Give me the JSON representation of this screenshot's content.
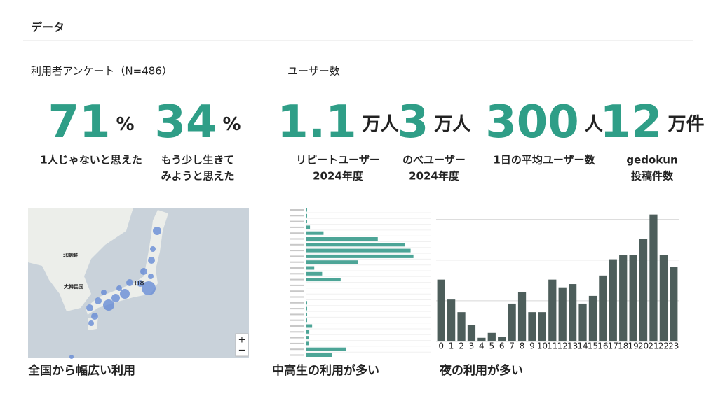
{
  "header": {
    "title": "データ"
  },
  "survey": {
    "label": "利用者アンケート（N=486）",
    "stats": [
      {
        "value": 71,
        "unit": "%",
        "caption": [
          "1人じゃないと思えた"
        ]
      },
      {
        "value": 34,
        "unit": "%",
        "caption": [
          "もう少し生きて",
          "みようと思えた"
        ]
      }
    ]
  },
  "users": {
    "label": "ユーザー数",
    "stats": [
      {
        "value": 1.1,
        "unit": "万人",
        "caption": [
          "リピートユーザー",
          "2024年度"
        ]
      },
      {
        "value": 3,
        "unit": "万人",
        "caption": [
          "のべユーザー",
          "2024年度"
        ]
      },
      {
        "value": 300,
        "unit": "人",
        "caption": [
          "1日の平均ユーザー数"
        ]
      },
      {
        "value": 12,
        "unit": "万件",
        "caption": [
          "gedokun",
          "投稿件数"
        ]
      }
    ]
  },
  "map": {
    "labels": [
      "北朝鮮",
      "大韓民国",
      "日本"
    ],
    "zoom_in": "+",
    "zoom_out": "−",
    "caption": "全国から幅広い利用"
  },
  "chart_data": [
    {
      "type": "hbar",
      "caption": "中高生の利用が多い",
      "color": "#4da597",
      "values": [
        1,
        1,
        1,
        5,
        24,
        100,
        138,
        146,
        150,
        72,
        11,
        22,
        48,
        0,
        0,
        0,
        1,
        1,
        1,
        1,
        8,
        4,
        3,
        3,
        56,
        36
      ],
      "xlim": [
        0,
        170
      ]
    },
    {
      "type": "bar",
      "caption": "夜の利用が多い",
      "color": "#4d5e5b",
      "categories": [
        "0",
        "1",
        "2",
        "3",
        "4",
        "5",
        "6",
        "7",
        "8",
        "9",
        "10",
        "11",
        "12",
        "13",
        "14",
        "15",
        "16",
        "17",
        "18",
        "19",
        "20",
        "21",
        "22",
        "23"
      ],
      "values": [
        1.52,
        1.03,
        0.72,
        0.41,
        0.09,
        0.21,
        0.12,
        0.93,
        1.22,
        0.72,
        0.72,
        1.52,
        1.33,
        1.41,
        0.93,
        1.12,
        1.62,
        2.02,
        2.12,
        2.12,
        2.52,
        3.12,
        2.12,
        1.83
      ],
      "ylim": [
        0,
        3.2
      ],
      "yticks": [
        0,
        1,
        2,
        3
      ],
      "grid": true
    }
  ]
}
